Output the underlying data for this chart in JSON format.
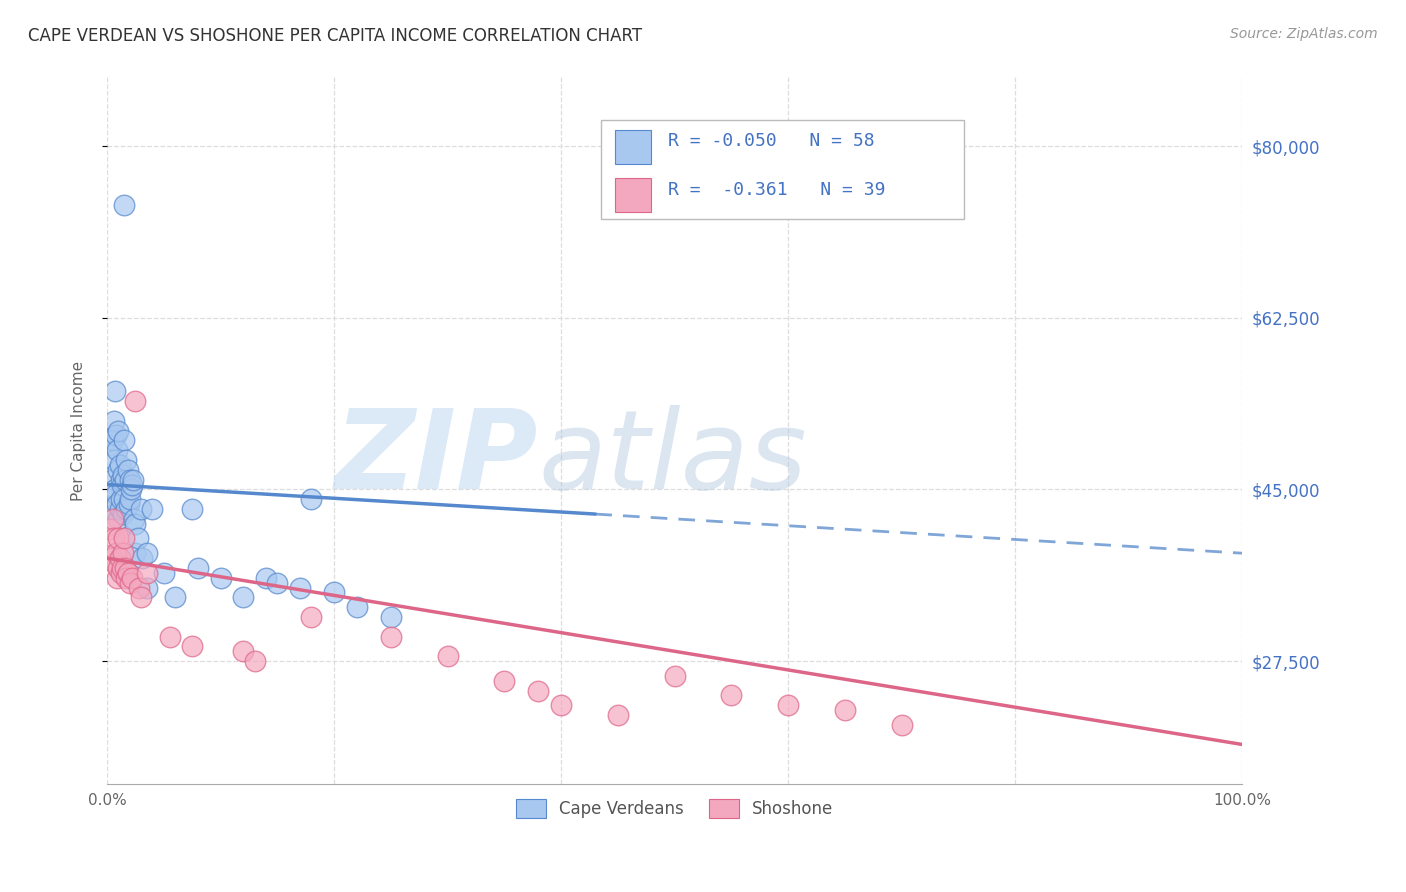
{
  "title": "CAPE VERDEAN VS SHOSHONE PER CAPITA INCOME CORRELATION CHART",
  "source": "Source: ZipAtlas.com",
  "ylabel": "Per Capita Income",
  "xlim": [
    0,
    100
  ],
  "ylim": [
    15000,
    87000
  ],
  "ytick_positions": [
    27500,
    45000,
    62500,
    80000
  ],
  "ytick_labels": [
    "$27,500",
    "$45,000",
    "$62,500",
    "$80,000"
  ],
  "xtick_positions": [
    0,
    20,
    40,
    60,
    80,
    100
  ],
  "xtick_labels": [
    "0.0%",
    "",
    "",
    "",
    "",
    "100.0%"
  ],
  "blue_color": "#A8C8F0",
  "pink_color": "#F4A8C0",
  "blue_line_color": "#5588CC",
  "pink_line_color": "#DD6688",
  "legend_label1": "Cape Verdeans",
  "legend_label2": "Shoshone",
  "blue_R": -0.05,
  "blue_N": 58,
  "pink_R": -0.361,
  "pink_N": 39,
  "blue_x": [
    0.3,
    0.4,
    0.5,
    0.5,
    0.5,
    0.6,
    0.6,
    0.7,
    0.7,
    0.8,
    0.8,
    0.9,
    0.9,
    1.0,
    1.0,
    1.0,
    1.1,
    1.1,
    1.2,
    1.2,
    1.3,
    1.4,
    1.4,
    1.5,
    1.5,
    1.5,
    1.6,
    1.7,
    1.7,
    1.8,
    1.9,
    2.0,
    2.0,
    2.1,
    2.2,
    2.3,
    2.4,
    2.5,
    2.5,
    2.7,
    3.0,
    3.1,
    3.5,
    3.5,
    4.0,
    5.0,
    6.0,
    7.5,
    8.0,
    10.0,
    12.0,
    14.0,
    15.0,
    17.0,
    18.0,
    20.0,
    22.0,
    25.0
  ],
  "blue_y": [
    49500,
    46000,
    50000,
    44000,
    43000,
    52000,
    48000,
    55000,
    45000,
    50500,
    44500,
    49000,
    43500,
    51000,
    47000,
    42000,
    47500,
    43000,
    46000,
    44000,
    45500,
    46500,
    42500,
    74000,
    50000,
    44000,
    46000,
    48000,
    43000,
    47000,
    43500,
    46000,
    44000,
    45000,
    45500,
    46000,
    42000,
    41500,
    38500,
    40000,
    43000,
    38000,
    38500,
    35000,
    43000,
    36500,
    34000,
    43000,
    37000,
    36000,
    34000,
    36000,
    35500,
    35000,
    44000,
    34500,
    33000,
    32000
  ],
  "pink_x": [
    0.3,
    0.4,
    0.5,
    0.6,
    0.7,
    0.8,
    0.9,
    1.0,
    1.0,
    1.1,
    1.2,
    1.3,
    1.4,
    1.5,
    1.6,
    1.7,
    1.8,
    2.0,
    2.2,
    2.5,
    2.8,
    3.0,
    3.5,
    5.5,
    7.5,
    12.0,
    13.0,
    18.0,
    25.0,
    30.0,
    35.0,
    38.0,
    40.0,
    45.0,
    50.0,
    55.0,
    60.0,
    65.0,
    70.0
  ],
  "pink_y": [
    41000,
    38000,
    42000,
    40000,
    37500,
    38500,
    36000,
    40000,
    37000,
    38000,
    36500,
    37000,
    38500,
    40000,
    37000,
    36000,
    36500,
    35500,
    36000,
    54000,
    35000,
    34000,
    36500,
    30000,
    29000,
    28500,
    27500,
    32000,
    30000,
    28000,
    25500,
    24500,
    23000,
    22000,
    26000,
    24000,
    23000,
    22500,
    21000
  ],
  "watermark_zip_color": "#C0D8F0",
  "watermark_atlas_color": "#B0C8E0",
  "background_color": "#FFFFFF",
  "grid_color": "#DDDDDD",
  "title_color": "#333333",
  "right_tick_color": "#4472C4"
}
